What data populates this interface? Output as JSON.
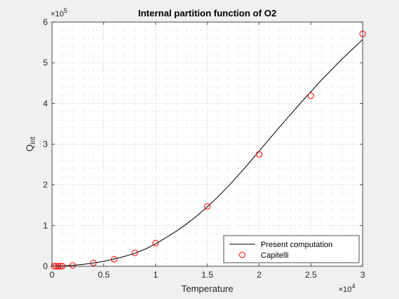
{
  "chart_data": {
    "type": "line",
    "title": "Internal partition function of O2",
    "xlabel": "Temperature",
    "ylabel_main": "Q",
    "ylabel_sub": "int",
    "x_exponent_base": "×10",
    "x_exponent_power": "4",
    "y_exponent_base": "×10",
    "y_exponent_power": "5",
    "xlim": [
      0,
      30000
    ],
    "ylim": [
      0,
      600000
    ],
    "x_ticks": [
      0,
      5000,
      10000,
      15000,
      20000,
      25000,
      30000
    ],
    "x_tick_labels": [
      "0",
      "0.5",
      "1",
      "1.5",
      "2",
      "2.5",
      "3"
    ],
    "y_ticks": [
      0,
      100000,
      200000,
      300000,
      400000,
      500000,
      600000
    ],
    "y_tick_labels": [
      "0",
      "1",
      "2",
      "3",
      "4",
      "5",
      "6"
    ],
    "grid": "major and minor, dotted",
    "legend_position": "bottom-right",
    "series": [
      {
        "name": "Present computation",
        "style": "line",
        "color": "#000000",
        "x": [
          0,
          1000,
          2000,
          3000,
          4000,
          5000,
          6000,
          7000,
          8000,
          9000,
          10000,
          11000,
          12000,
          13000,
          14000,
          15000,
          16000,
          17000,
          18000,
          19000,
          20000,
          21000,
          22000,
          23000,
          24000,
          25000,
          26000,
          27000,
          28000,
          29000,
          30000
        ],
        "y": [
          0,
          800,
          2500,
          4500,
          8000,
          12000,
          18000,
          24000,
          32000,
          42000,
          55000,
          70000,
          86000,
          104000,
          124000,
          146000,
          170000,
          196000,
          224000,
          253000,
          283000,
          313000,
          343000,
          372000,
          401000,
          429000,
          457000,
          483000,
          509000,
          533000,
          557000
        ]
      },
      {
        "name": "Capitelli",
        "style": "markers",
        "marker": "circle",
        "color": "#ff0000",
        "x": [
          200,
          400,
          600,
          800,
          1000,
          2000,
          4000,
          6000,
          8000,
          10000,
          15000,
          20000,
          25000,
          30000
        ],
        "y": [
          0,
          0,
          100,
          200,
          300,
          2000,
          8000,
          17000,
          33000,
          57000,
          147000,
          275000,
          419000,
          571000
        ]
      }
    ]
  }
}
